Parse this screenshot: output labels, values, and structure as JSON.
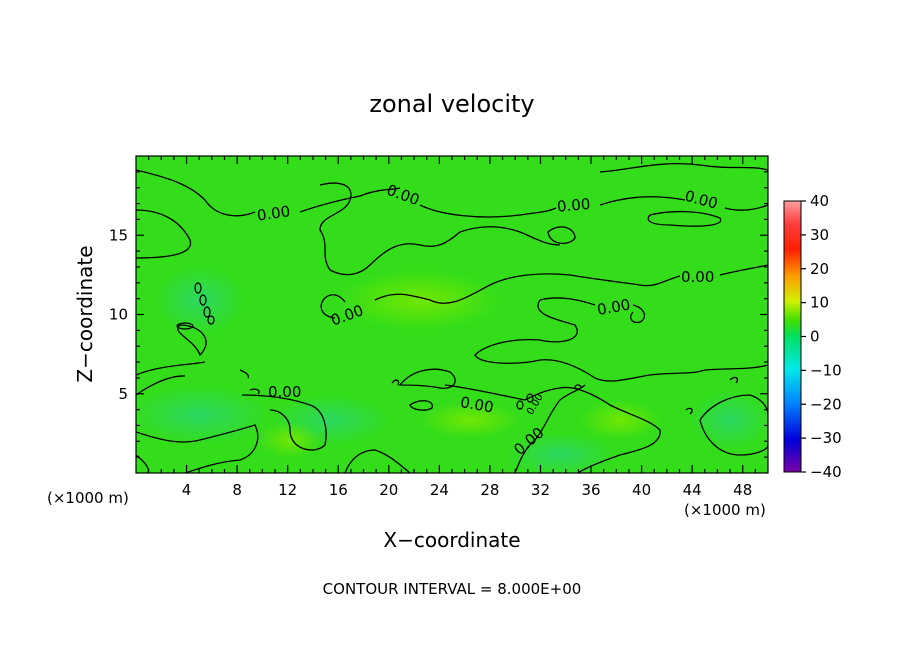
{
  "chart_data": {
    "type": "heatmap",
    "title": "zonal velocity",
    "xlabel": "X−coordinate",
    "ylabel": "Z−coordinate",
    "x_unit_note_left": "(×1000 m)",
    "x_unit_note_right": "(×1000 m)",
    "xlim": [
      0,
      50
    ],
    "ylim": [
      0,
      20
    ],
    "x_ticks": [
      4,
      8,
      12,
      16,
      20,
      24,
      28,
      32,
      36,
      40,
      44,
      48
    ],
    "y_ticks": [
      5,
      10,
      15
    ],
    "colorbar": {
      "range": [
        -40,
        40
      ],
      "ticks": [
        40,
        30,
        20,
        10,
        0,
        -10,
        -20,
        -30,
        -40
      ],
      "colormap": [
        "#7a00a8",
        "#0000d8",
        "#0060ff",
        "#00e0ff",
        "#00e060",
        "#34dd00",
        "#c8f000",
        "#ffe000",
        "#ff9000",
        "#ff2000",
        "#ff9090"
      ]
    },
    "field_description_color": "#34dd1a",
    "contour_value_label": "0.00",
    "contour_label_count": 11,
    "footer": "CONTOUR INTERVAL = 8.000E+00"
  }
}
